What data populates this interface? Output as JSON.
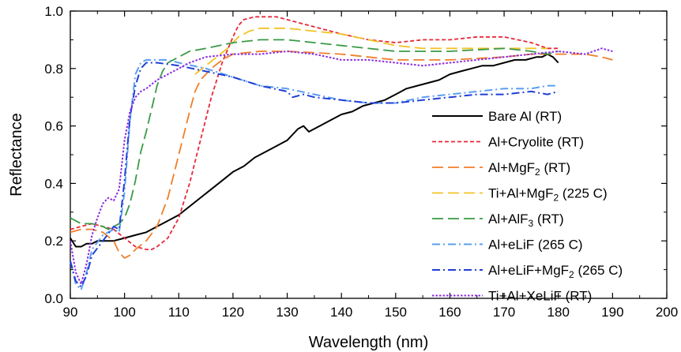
{
  "chart_data": {
    "type": "line",
    "title": "",
    "xlabel": "Wavelength (nm)",
    "ylabel": "Reflectance",
    "xlim": [
      90,
      200
    ],
    "ylim": [
      0.0,
      1.0
    ],
    "xticks": [
      90,
      100,
      110,
      120,
      130,
      140,
      150,
      160,
      170,
      180,
      190,
      200
    ],
    "yticks": [
      "0.0",
      "0.2",
      "0.4",
      "0.6",
      "0.8",
      "1.0"
    ],
    "grid": false,
    "legend_position": "bottom-right",
    "series": [
      {
        "name": "Bare Al (RT)",
        "color": "#000000",
        "dash": "solid",
        "x": [
          90,
          91,
          92,
          93,
          94,
          95,
          96,
          98,
          100,
          102,
          104,
          106,
          108,
          110,
          112,
          114,
          116,
          118,
          120,
          122,
          124,
          126,
          128,
          130,
          131,
          132,
          133,
          134,
          136,
          138,
          140,
          142,
          144,
          146,
          148,
          150,
          152,
          154,
          156,
          158,
          160,
          162,
          164,
          166,
          168,
          170,
          172,
          174,
          176,
          177,
          178,
          179,
          180
        ],
        "y": [
          0.21,
          0.18,
          0.18,
          0.19,
          0.19,
          0.2,
          0.2,
          0.2,
          0.21,
          0.22,
          0.23,
          0.25,
          0.27,
          0.29,
          0.32,
          0.35,
          0.38,
          0.41,
          0.44,
          0.46,
          0.49,
          0.51,
          0.53,
          0.55,
          0.57,
          0.59,
          0.6,
          0.58,
          0.6,
          0.62,
          0.64,
          0.65,
          0.67,
          0.68,
          0.69,
          0.71,
          0.73,
          0.74,
          0.75,
          0.76,
          0.78,
          0.79,
          0.8,
          0.81,
          0.81,
          0.82,
          0.83,
          0.83,
          0.84,
          0.84,
          0.85,
          0.84,
          0.82
        ]
      },
      {
        "name": "Al+Cryolite (RT)",
        "color": "#e8283a",
        "dash": "short",
        "x": [
          90,
          92,
          94,
          96,
          98,
          100,
          102,
          104,
          105,
          106,
          108,
          110,
          112,
          114,
          116,
          118,
          120,
          121,
          122,
          124,
          126,
          128,
          130,
          132,
          134,
          136,
          140,
          145,
          150,
          155,
          160,
          165,
          170,
          175,
          178,
          180
        ],
        "y": [
          0.24,
          0.25,
          0.26,
          0.25,
          0.24,
          0.21,
          0.18,
          0.17,
          0.17,
          0.18,
          0.21,
          0.28,
          0.4,
          0.55,
          0.7,
          0.82,
          0.91,
          0.95,
          0.97,
          0.98,
          0.98,
          0.98,
          0.97,
          0.96,
          0.95,
          0.94,
          0.92,
          0.9,
          0.89,
          0.9,
          0.9,
          0.91,
          0.91,
          0.89,
          0.87,
          0.87
        ]
      },
      {
        "name": "Al+MgF",
        "name_sub": "2",
        "name_suffix": " (RT)",
        "color": "#ef7f2a",
        "dash": "long",
        "x": [
          90,
          92,
          94,
          96,
          98,
          99,
          100,
          101,
          102,
          104,
          106,
          108,
          110,
          112,
          113,
          114,
          115,
          116,
          118,
          120,
          125,
          130,
          140,
          150,
          160,
          170,
          175,
          178,
          180,
          182,
          185,
          188,
          190
        ],
        "y": [
          0.23,
          0.24,
          0.24,
          0.23,
          0.2,
          0.16,
          0.14,
          0.15,
          0.17,
          0.2,
          0.25,
          0.35,
          0.5,
          0.65,
          0.72,
          0.76,
          0.78,
          0.8,
          0.83,
          0.85,
          0.86,
          0.86,
          0.85,
          0.83,
          0.83,
          0.84,
          0.85,
          0.85,
          0.85,
          0.85,
          0.85,
          0.84,
          0.83
        ]
      },
      {
        "name": "Ti+Al+MgF",
        "name_sub": "2",
        "name_suffix": " (225 C)",
        "color": "#f2c224",
        "dash": "long",
        "x": [
          113,
          115,
          117,
          119,
          121,
          123,
          125,
          127,
          130,
          135,
          140,
          145,
          150,
          155,
          160,
          165,
          170,
          175,
          178
        ],
        "y": [
          0.78,
          0.81,
          0.84,
          0.87,
          0.91,
          0.93,
          0.94,
          0.94,
          0.94,
          0.93,
          0.92,
          0.9,
          0.88,
          0.87,
          0.87,
          0.87,
          0.87,
          0.87,
          0.87
        ]
      },
      {
        "name": "Al+AlF",
        "name_sub": "3",
        "name_suffix": " (RT)",
        "color": "#3a9a46",
        "dash": "long",
        "x": [
          90,
          92,
          94,
          96,
          97,
          98,
          99,
          100,
          101,
          102,
          103,
          104,
          105,
          106,
          107,
          108,
          110,
          112,
          115,
          120,
          125,
          130,
          140,
          150,
          160,
          170,
          175,
          178,
          180
        ],
        "y": [
          0.28,
          0.26,
          0.26,
          0.25,
          0.24,
          0.25,
          0.26,
          0.28,
          0.33,
          0.41,
          0.51,
          0.58,
          0.66,
          0.74,
          0.79,
          0.82,
          0.84,
          0.86,
          0.87,
          0.89,
          0.9,
          0.9,
          0.88,
          0.86,
          0.86,
          0.87,
          0.86,
          0.85,
          0.86
        ]
      },
      {
        "name": "Al+eLiF (265 C)",
        "color": "#5b9ef0",
        "dash": "dashdot",
        "x": [
          90,
          91,
          92,
          93,
          94,
          96,
          98,
          99,
          100,
          101,
          102,
          103,
          104,
          106,
          108,
          110,
          115,
          120,
          125,
          130,
          135,
          140,
          145,
          150,
          155,
          160,
          165,
          170,
          175,
          178,
          180
        ],
        "y": [
          0.13,
          0.05,
          0.03,
          0.09,
          0.17,
          0.22,
          0.24,
          0.23,
          0.37,
          0.62,
          0.78,
          0.82,
          0.83,
          0.83,
          0.83,
          0.82,
          0.8,
          0.77,
          0.74,
          0.73,
          0.71,
          0.69,
          0.68,
          0.68,
          0.7,
          0.71,
          0.72,
          0.73,
          0.73,
          0.74,
          0.74
        ]
      },
      {
        "name": "Al+eLiF+MgF",
        "name_sub": "2",
        "name_suffix": " (265 C)",
        "color": "#1f3fd8",
        "dash": "dashdot",
        "x": [
          90,
          91,
          92,
          93,
          94,
          96,
          98,
          99,
          100,
          101,
          102,
          103,
          104,
          106,
          110,
          115,
          120,
          125,
          130,
          131,
          133,
          135,
          140,
          145,
          150,
          155,
          160,
          165,
          170,
          175,
          178,
          180
        ],
        "y": [
          0.13,
          0.06,
          0.04,
          0.08,
          0.15,
          0.2,
          0.25,
          0.24,
          0.41,
          0.63,
          0.74,
          0.8,
          0.82,
          0.82,
          0.81,
          0.79,
          0.77,
          0.74,
          0.72,
          0.7,
          0.71,
          0.7,
          0.69,
          0.68,
          0.68,
          0.69,
          0.7,
          0.71,
          0.71,
          0.72,
          0.71,
          0.72
        ]
      },
      {
        "name": "Ti+Al+XeLiF (RT)",
        "color": "#8a2be2",
        "dash": "dotted",
        "x": [
          90,
          91,
          92,
          93,
          94,
          95,
          96,
          97,
          98,
          99,
          100,
          101,
          102,
          103,
          104,
          106,
          108,
          110,
          112,
          115,
          120,
          125,
          130,
          135,
          140,
          145,
          150,
          155,
          160,
          165,
          170,
          175,
          180,
          185,
          188,
          190
        ],
        "y": [
          0.2,
          0.09,
          0.05,
          0.12,
          0.22,
          0.28,
          0.33,
          0.35,
          0.34,
          0.38,
          0.55,
          0.65,
          0.7,
          0.72,
          0.73,
          0.76,
          0.78,
          0.8,
          0.82,
          0.84,
          0.85,
          0.85,
          0.86,
          0.85,
          0.83,
          0.83,
          0.82,
          0.81,
          0.82,
          0.83,
          0.84,
          0.85,
          0.86,
          0.85,
          0.87,
          0.86
        ]
      }
    ]
  }
}
